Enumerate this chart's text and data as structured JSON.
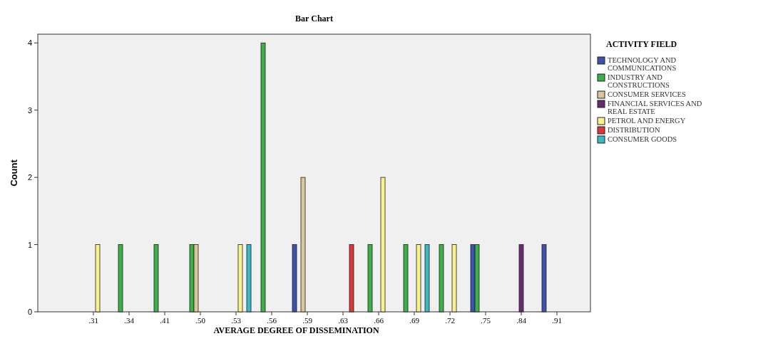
{
  "chart_data": {
    "type": "bar",
    "title": "Bar Chart",
    "xlabel": "AVERAGE DEGREE OF DISSEMINATION",
    "ylabel": "Count",
    "legend_title": "ACTIVITY FIELD",
    "legend": "right",
    "grid": false,
    "categories": [
      ".31",
      ".34",
      ".41",
      ".50",
      ".53",
      ".56",
      ".59",
      ".63",
      ".66",
      ".69",
      ".72",
      ".75",
      ".84",
      ".91"
    ],
    "ylim": [
      0,
      4.13
    ],
    "yticks": [
      0,
      1,
      2,
      3,
      4
    ],
    "series": [
      {
        "name": "TECHNOLOGY AND COMMUNICATIONS",
        "color": "#3f51a8",
        "values": [
          null,
          null,
          null,
          null,
          null,
          null,
          1,
          null,
          null,
          null,
          null,
          1,
          null,
          1
        ]
      },
      {
        "name": "INDUSTRY AND CONSTRUCTIONS",
        "color": "#3cae4a",
        "values": [
          null,
          1,
          1,
          1,
          null,
          4,
          null,
          null,
          1,
          1,
          1,
          1,
          null,
          null
        ]
      },
      {
        "name": "CONSUMER SERVICES",
        "color": "#d8c79a",
        "values": [
          null,
          null,
          null,
          1,
          null,
          null,
          2,
          null,
          null,
          null,
          null,
          null,
          null,
          null
        ]
      },
      {
        "name": "FINANCIAL SERVICES AND REAL ESTATE",
        "color": "#6a2a72",
        "values": [
          null,
          null,
          null,
          null,
          null,
          null,
          null,
          null,
          null,
          null,
          null,
          null,
          1,
          null
        ]
      },
      {
        "name": "PETROL AND ENERGY",
        "color": "#f8f28c",
        "values": [
          1,
          null,
          null,
          null,
          1,
          null,
          null,
          null,
          2,
          1,
          1,
          null,
          null,
          null
        ]
      },
      {
        "name": "DISTRIBUTION",
        "color": "#d9383a",
        "values": [
          null,
          null,
          null,
          null,
          null,
          null,
          null,
          1,
          null,
          null,
          null,
          null,
          null,
          null
        ]
      },
      {
        "name": "CONSUMER GOODS",
        "color": "#3cb8c0",
        "values": [
          null,
          null,
          null,
          null,
          1,
          null,
          null,
          null,
          null,
          1,
          null,
          null,
          null,
          null
        ]
      }
    ]
  }
}
